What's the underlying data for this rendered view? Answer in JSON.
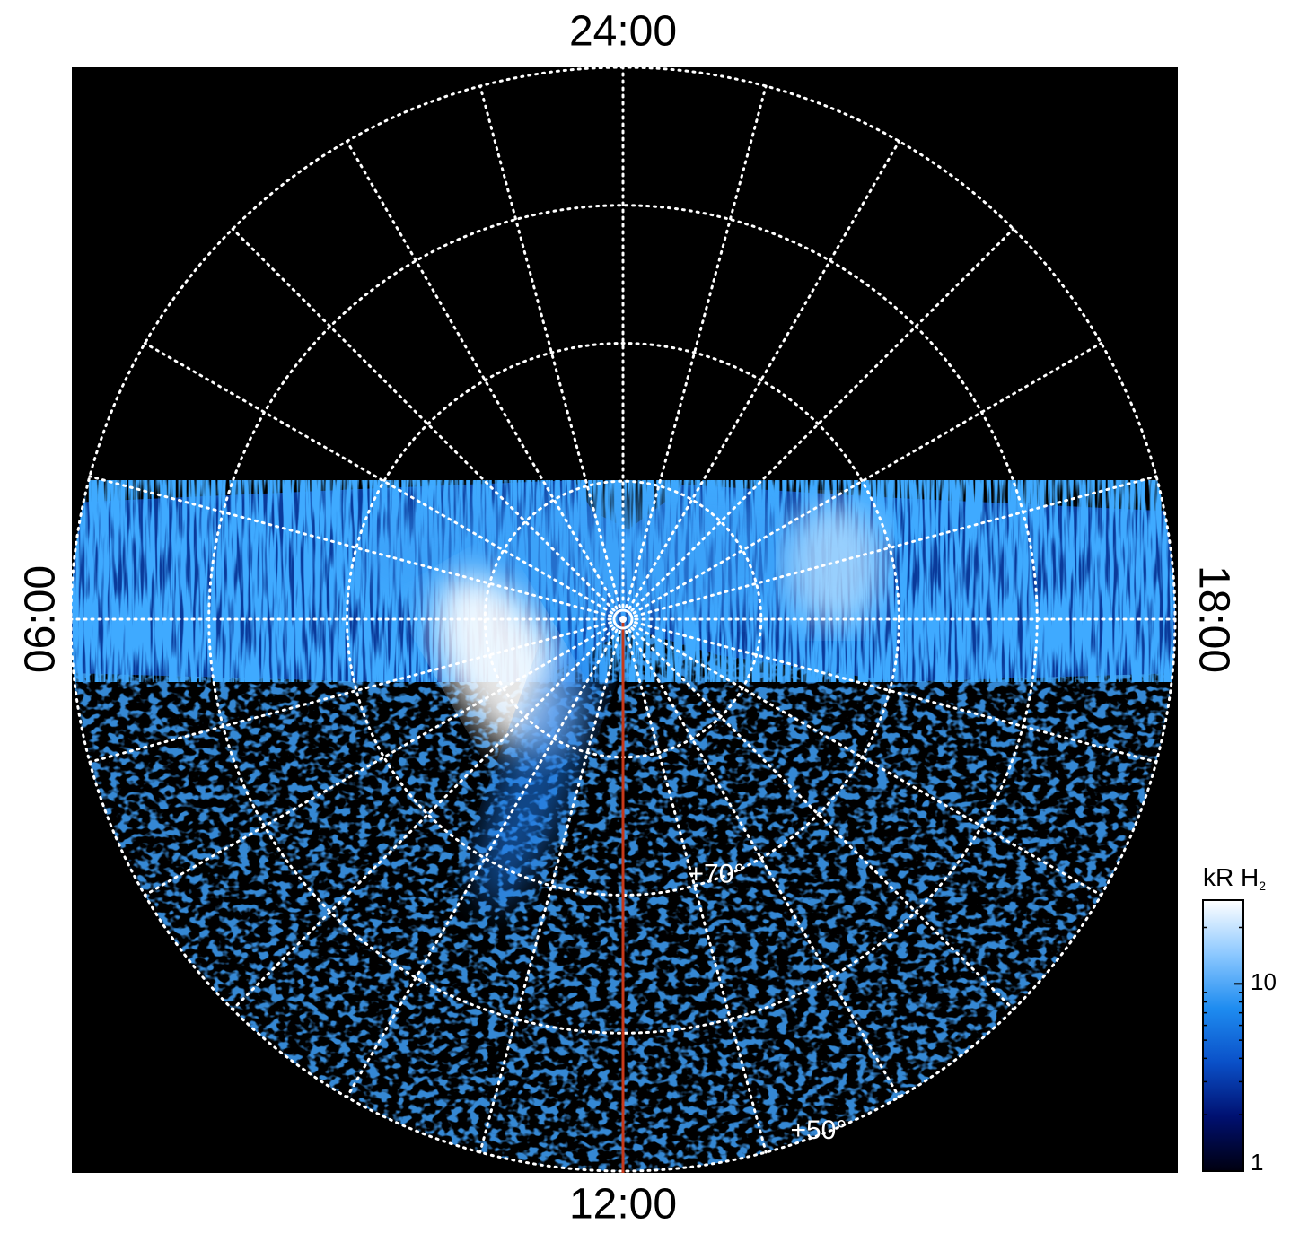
{
  "chart_data": {
    "type": "polar-image",
    "angle_ticks": [
      {
        "value": 24,
        "label": "24:00"
      },
      {
        "value": 6,
        "label": "06:00"
      },
      {
        "value": 12,
        "label": "12:00"
      },
      {
        "value": 18,
        "label": "18:00"
      }
    ],
    "hour_grid": [
      0,
      1,
      2,
      3,
      4,
      5,
      6,
      7,
      8,
      9,
      10,
      11,
      12,
      13,
      14,
      15,
      16,
      17,
      18,
      19,
      20,
      21,
      22,
      23
    ],
    "rlim": [
      90,
      50
    ],
    "rgrid": [
      80,
      70,
      60,
      50
    ],
    "rticks": [
      {
        "value": 70,
        "label": "+70°"
      },
      {
        "value": 50,
        "label": "+50°"
      }
    ],
    "grid_color": "#ffffff",
    "noon_line_color": "#c8391a",
    "colorbar": {
      "label": "kR H",
      "label_sub": "2",
      "log": true,
      "lim": [
        1,
        28
      ],
      "ticks": [
        1,
        10
      ],
      "colors": [
        "#000010",
        "#001070",
        "#0a50c8",
        "#1e8cf0",
        "#8cc8ff",
        "#ffffff"
      ]
    }
  }
}
